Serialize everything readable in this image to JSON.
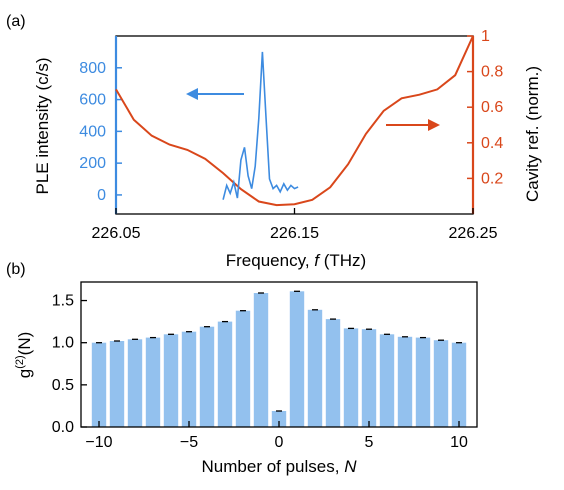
{
  "colors": {
    "ple": "#3d8be0",
    "cavity": "#d9471b",
    "bar": "#93c1ee",
    "axis": "#000000"
  },
  "panel_labels": {
    "a": "(a)",
    "b": "(b)"
  },
  "chart_data": [
    {
      "type": "line",
      "panel": "(a)",
      "xlabel_main": "Frequency, ",
      "xlabel_var": "f",
      "xlabel_unit": " (THz)",
      "xlim": [
        226.05,
        226.25
      ],
      "xticks": [
        226.05,
        226.15,
        226.25
      ],
      "xtick_labels": [
        "226.05",
        "226.15",
        "226.25"
      ],
      "y_left": {
        "label": "PLE intensity (c/s)",
        "lim": [
          -120,
          1000
        ],
        "ticks": [
          0,
          200,
          400,
          600,
          800
        ],
        "tick_labels": [
          "0",
          "200",
          "400",
          "600",
          "800"
        ]
      },
      "y_right": {
        "label": "Cavity ref. (norm.)",
        "lim": [
          0,
          1
        ],
        "ticks": [
          0.2,
          0.4,
          0.6,
          0.8,
          1.0
        ],
        "tick_labels": [
          "0.2",
          "0.4",
          "0.6",
          "0.8",
          "1"
        ]
      },
      "series": [
        {
          "axis": "left",
          "x": [
            226.11,
            226.112,
            226.114,
            226.116,
            226.118,
            226.12,
            226.122,
            226.124,
            226.126,
            226.128,
            226.13,
            226.132,
            226.134,
            226.136,
            226.138,
            226.14,
            226.142,
            226.144,
            226.146,
            226.148,
            226.15,
            226.152
          ],
          "values": [
            -30,
            60,
            10,
            80,
            -20,
            220,
            300,
            120,
            40,
            180,
            480,
            900,
            500,
            100,
            40,
            60,
            20,
            70,
            30,
            60,
            40,
            50
          ]
        },
        {
          "axis": "right",
          "x": [
            226.05,
            226.06,
            226.07,
            226.08,
            226.09,
            226.1,
            226.11,
            226.12,
            226.13,
            226.14,
            226.15,
            226.16,
            226.17,
            226.18,
            226.19,
            226.2,
            226.21,
            226.22,
            226.23,
            226.24,
            226.25
          ],
          "values": [
            0.7,
            0.53,
            0.44,
            0.39,
            0.36,
            0.31,
            0.23,
            0.14,
            0.07,
            0.05,
            0.055,
            0.08,
            0.15,
            0.28,
            0.45,
            0.58,
            0.65,
            0.67,
            0.7,
            0.78,
            1.0
          ]
        }
      ]
    },
    {
      "type": "bar",
      "panel": "(b)",
      "xlabel_main": "Number of pulses, ",
      "xlabel_var": "N",
      "ylabel": "g(2)(N)",
      "ylabel_base": "g",
      "ylabel_sup": "(2)",
      "ylabel_arg": "(N)",
      "xlim": [
        -11,
        11
      ],
      "ylim": [
        0,
        1.72
      ],
      "xticks": [
        -10,
        -5,
        0,
        5,
        10
      ],
      "xtick_labels": [
        "−10",
        "−5",
        "0",
        "5",
        "10"
      ],
      "yticks": [
        0,
        0.5,
        1.0,
        1.5
      ],
      "ytick_labels": [
        "0.0",
        "0.5",
        "1.0",
        "1.5"
      ],
      "categories": [
        -10,
        -9,
        -8,
        -7,
        -6,
        -5,
        -4,
        -3,
        -2,
        -1,
        0,
        1,
        2,
        3,
        4,
        5,
        6,
        7,
        8,
        9,
        10
      ],
      "values": [
        1.0,
        1.02,
        1.04,
        1.06,
        1.1,
        1.13,
        1.19,
        1.25,
        1.38,
        1.59,
        0.19,
        1.61,
        1.39,
        1.28,
        1.17,
        1.16,
        1.1,
        1.07,
        1.06,
        1.03,
        1.0
      ]
    }
  ]
}
